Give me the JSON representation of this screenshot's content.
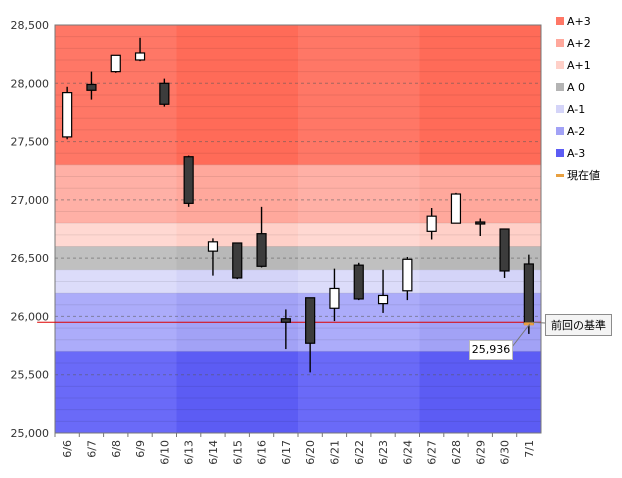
{
  "chart_data": {
    "type": "candlestick",
    "ylim": [
      25000,
      28500
    ],
    "y_ticks": [
      "25,000",
      "25,500",
      "26,000",
      "26,500",
      "27,000",
      "27,500",
      "28,000",
      "28,500"
    ],
    "y_tick_values": [
      25000,
      25500,
      26000,
      26500,
      27000,
      27500,
      28000,
      28500
    ],
    "categories": [
      "6/6",
      "6/7",
      "6/8",
      "6/9",
      "6/10",
      "6/13",
      "6/14",
      "6/15",
      "6/16",
      "6/17",
      "6/20",
      "6/21",
      "6/22",
      "6/23",
      "6/24",
      "6/27",
      "6/28",
      "6/29",
      "6/30",
      "7/1"
    ],
    "candles": [
      {
        "open": 27540,
        "high": 27970,
        "low": 27520,
        "close": 27920
      },
      {
        "open": 27990,
        "high": 28100,
        "low": 27860,
        "close": 27940
      },
      {
        "open": 28100,
        "high": 28240,
        "low": 28090,
        "close": 28240
      },
      {
        "open": 28200,
        "high": 28390,
        "low": 28190,
        "close": 28260
      },
      {
        "open": 28000,
        "high": 28040,
        "low": 27800,
        "close": 27820
      },
      {
        "open": 27370,
        "high": 27380,
        "low": 26940,
        "close": 26970
      },
      {
        "open": 26560,
        "high": 26670,
        "low": 26350,
        "close": 26640
      },
      {
        "open": 26630,
        "high": 26630,
        "low": 26320,
        "close": 26330
      },
      {
        "open": 26710,
        "high": 26940,
        "low": 26420,
        "close": 26430
      },
      {
        "open": 25980,
        "high": 26060,
        "low": 25720,
        "close": 25950
      },
      {
        "open": 26160,
        "high": 26160,
        "low": 25520,
        "close": 25770
      },
      {
        "open": 26070,
        "high": 26410,
        "low": 25960,
        "close": 26240
      },
      {
        "open": 26440,
        "high": 26460,
        "low": 26140,
        "close": 26150
      },
      {
        "open": 26110,
        "high": 26400,
        "low": 26030,
        "close": 26180
      },
      {
        "open": 26220,
        "high": 26510,
        "low": 26140,
        "close": 26490
      },
      {
        "open": 26730,
        "high": 26930,
        "low": 26660,
        "close": 26860
      },
      {
        "open": 26800,
        "high": 27060,
        "low": 26800,
        "close": 27050
      },
      {
        "open": 26810,
        "high": 26840,
        "low": 26690,
        "close": 26800
      },
      {
        "open": 26750,
        "high": 26750,
        "low": 26330,
        "close": 26390
      },
      {
        "open": 26450,
        "high": 26530,
        "low": 25850,
        "close": 25936
      }
    ],
    "bands": [
      {
        "name": "A+3",
        "from": 27300,
        "to": 28500,
        "color": "#ff7766",
        "alt": "#ff6b58"
      },
      {
        "name": "A+2",
        "from": 26800,
        "to": 27300,
        "color": "#ffb0a6",
        "alt": "#ffa89c"
      },
      {
        "name": "A+1",
        "from": 26600,
        "to": 26800,
        "color": "#ffd8d2",
        "alt": "#ffd0c8"
      },
      {
        "name": "A 0",
        "from": 26400,
        "to": 26600,
        "color": "#c0c0c0",
        "alt": "#b8b8b8"
      },
      {
        "name": "A-1",
        "from": 26200,
        "to": 26400,
        "color": "#dcdcfa",
        "alt": "#d4d4f8"
      },
      {
        "name": "A-2",
        "from": 25700,
        "to": 26200,
        "color": "#acacfa",
        "alt": "#a2a2f6"
      },
      {
        "name": "A-3",
        "from": 25000,
        "to": 25700,
        "color": "#6a6af8",
        "alt": "#5c5cf4"
      }
    ],
    "alt_week_groups": [
      [
        5,
        9
      ],
      [
        15,
        19
      ]
    ],
    "reference_line": {
      "value": 25950,
      "label": "前回の基準",
      "color": "#dd0000"
    },
    "current_value": {
      "value": 25936,
      "label": "25,936",
      "color": "#e8a040"
    },
    "legend": {
      "position": "right",
      "items": [
        {
          "label": "A+3",
          "color": "#ff7766",
          "kind": "box"
        },
        {
          "label": "A+2",
          "color": "#ffa89c",
          "kind": "box"
        },
        {
          "label": "A+1",
          "color": "#ffd0c8",
          "kind": "box"
        },
        {
          "label": "A 0",
          "color": "#b4b4b4",
          "kind": "box"
        },
        {
          "label": "A-1",
          "color": "#d4d4f8",
          "kind": "box"
        },
        {
          "label": "A-2",
          "color": "#a2a2f6",
          "kind": "box"
        },
        {
          "label": "A-3",
          "color": "#5c5cf4",
          "kind": "box"
        },
        {
          "label": "現在値",
          "color": "#e8a040",
          "kind": "line"
        }
      ]
    },
    "grid": true
  }
}
